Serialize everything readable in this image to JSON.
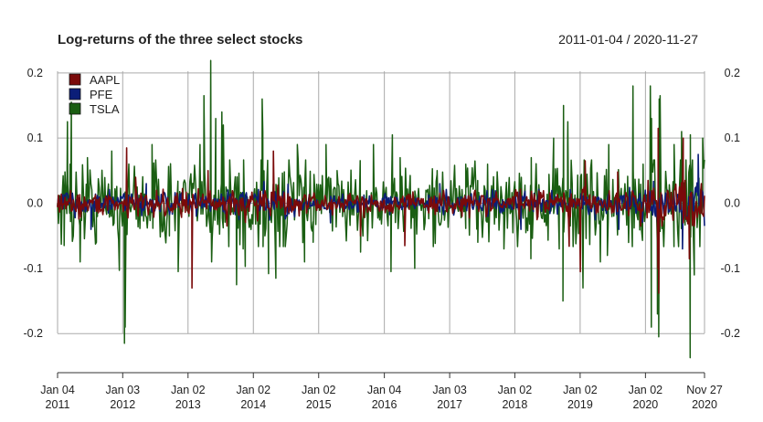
{
  "chart_data": {
    "type": "line",
    "title": "Log-returns of the three select stocks",
    "date_range_label": "2011-01-04 / 2020-11-27",
    "x_start": "2011-01-04",
    "x_end": "2020-11-27",
    "ylim": [
      -0.26,
      0.225
    ],
    "y_ticks": [
      {
        "value": 0.2,
        "label": "0.2"
      },
      {
        "value": 0.1,
        "label": "0.1"
      },
      {
        "value": 0.0,
        "label": "0.0"
      },
      {
        "value": -0.1,
        "label": "-0.1"
      },
      {
        "value": -0.2,
        "label": "-0.2"
      }
    ],
    "x_ticks": [
      {
        "date": "2011-01-04",
        "line1": "Jan 04",
        "line2": "2011"
      },
      {
        "date": "2012-01-03",
        "line1": "Jan 03",
        "line2": "2012"
      },
      {
        "date": "2013-01-02",
        "line1": "Jan 02",
        "line2": "2013"
      },
      {
        "date": "2014-01-02",
        "line1": "Jan 02",
        "line2": "2014"
      },
      {
        "date": "2015-01-02",
        "line1": "Jan 02",
        "line2": "2015"
      },
      {
        "date": "2016-01-04",
        "line1": "Jan 04",
        "line2": "2016"
      },
      {
        "date": "2017-01-03",
        "line1": "Jan 03",
        "line2": "2017"
      },
      {
        "date": "2018-01-02",
        "line1": "Jan 02",
        "line2": "2018"
      },
      {
        "date": "2019-01-02",
        "line1": "Jan 02",
        "line2": "2019"
      },
      {
        "date": "2020-01-02",
        "line1": "Jan 02",
        "line2": "2020"
      },
      {
        "date": "2020-11-27",
        "line1": "Nov 27",
        "line2": "2020"
      }
    ],
    "grid": true,
    "legend": {
      "placement": "top-left"
    },
    "series": [
      {
        "name": "TSLA",
        "color": "#1a5e12",
        "values": [
          [
            "2011-01-04",
            0.0
          ],
          [
            "2011-02-10",
            -0.065
          ],
          [
            "2011-03-15",
            0.06
          ],
          [
            "2011-05-10",
            -0.09
          ],
          [
            "2011-06-20",
            0.07
          ],
          [
            "2011-08-09",
            -0.06
          ],
          [
            "2011-11-03",
            0.08
          ],
          [
            "2011-02-28",
            0.125
          ],
          [
            "2011-03-22",
            0.155
          ],
          [
            "2011-12-15",
            -0.103
          ],
          [
            "2012-01-13",
            -0.215
          ],
          [
            "2012-01-17",
            -0.19
          ],
          [
            "2012-06-15",
            0.09
          ],
          [
            "2012-09-20",
            -0.05
          ],
          [
            "2012-11-08",
            -0.105
          ],
          [
            "2013-03-10",
            0.09
          ],
          [
            "2013-04-01",
            0.165
          ],
          [
            "2013-05-09",
            0.219
          ],
          [
            "2013-05-14",
            -0.09
          ],
          [
            "2013-06-06",
            0.13
          ],
          [
            "2013-07-10",
            0.14
          ],
          [
            "2013-07-18",
            0.12
          ],
          [
            "2013-09-30",
            -0.125
          ],
          [
            "2013-11-06",
            -0.07
          ],
          [
            "2013-11-18",
            -0.097
          ],
          [
            "2014-02-20",
            0.16
          ],
          [
            "2014-02-24",
            0.11
          ],
          [
            "2014-03-28",
            -0.108
          ],
          [
            "2014-05-08",
            -0.115
          ],
          [
            "2014-09-05",
            0.09
          ],
          [
            "2014-10-15",
            -0.09
          ],
          [
            "2014-12-02",
            -0.06
          ],
          [
            "2015-02-12",
            0.09
          ],
          [
            "2015-04-15",
            0.05
          ],
          [
            "2015-08-24",
            -0.075
          ],
          [
            "2015-11-04",
            0.09
          ],
          [
            "2016-02-10",
            -0.105
          ],
          [
            "2016-02-18",
            0.105
          ],
          [
            "2016-04-01",
            0.07
          ],
          [
            "2016-06-22",
            -0.1
          ],
          [
            "2016-10-25",
            0.05
          ],
          [
            "2017-04-03",
            0.06
          ],
          [
            "2017-06-09",
            -0.06
          ],
          [
            "2017-08-03",
            0.06
          ],
          [
            "2017-11-02",
            -0.07
          ],
          [
            "2018-04-02",
            -0.085
          ],
          [
            "2018-04-04",
            0.07
          ],
          [
            "2018-08-07",
            0.1
          ],
          [
            "2018-09-07",
            -0.07
          ],
          [
            "2018-09-28",
            -0.15
          ],
          [
            "2018-10-01",
            0.15
          ],
          [
            "2018-10-24",
            0.09
          ],
          [
            "2018-10-25",
            0.125
          ],
          [
            "2019-01-18",
            -0.13
          ],
          [
            "2019-04-25",
            -0.09
          ],
          [
            "2019-06-03",
            -0.08
          ],
          [
            "2019-06-11",
            0.09
          ],
          [
            "2019-10-24",
            0.18
          ],
          [
            "2019-12-20",
            0.06
          ],
          [
            "2020-01-29",
            0.18
          ],
          [
            "2020-02-04",
            -0.19
          ],
          [
            "2020-02-05",
            0.13
          ],
          [
            "2020-03-09",
            -0.17
          ],
          [
            "2020-03-16",
            -0.205
          ],
          [
            "2020-03-19",
            0.16
          ],
          [
            "2020-03-24",
            0.165
          ],
          [
            "2020-06-10",
            0.09
          ],
          [
            "2020-07-22",
            0.11
          ],
          [
            "2020-09-08",
            -0.237
          ],
          [
            "2020-09-09",
            0.105
          ],
          [
            "2020-10-01",
            -0.11
          ],
          [
            "2020-11-17",
            0.1
          ]
        ]
      },
      {
        "name": "PFE",
        "color": "#0b1e78",
        "values": [
          [
            "2011-07-10",
            -0.04
          ],
          [
            "2012-05-14",
            0.03
          ],
          [
            "2015-03-09",
            -0.03
          ],
          [
            "2016-11-09",
            0.03
          ],
          [
            "2018-02-05",
            -0.04
          ],
          [
            "2019-08-06",
            -0.04
          ],
          [
            "2020-03-16",
            -0.075
          ],
          [
            "2020-07-27",
            -0.07
          ],
          [
            "2020-10-23",
            0.075
          ]
        ]
      },
      {
        "name": "AAPL",
        "color": "#7a0a0a",
        "values": [
          [
            "2012-01-25",
            0.085
          ],
          [
            "2012-03-15",
            0.04
          ],
          [
            "2013-01-24",
            -0.13
          ],
          [
            "2013-04-24",
            0.05
          ],
          [
            "2014-04-24",
            0.08
          ],
          [
            "2015-08-24",
            -0.05
          ],
          [
            "2016-04-27",
            -0.065
          ],
          [
            "2018-11-02",
            -0.066
          ],
          [
            "2019-01-03",
            -0.105
          ],
          [
            "2019-01-30",
            0.065
          ],
          [
            "2019-07-31",
            0.048
          ],
          [
            "2020-03-12",
            -0.1
          ],
          [
            "2020-03-13",
            0.115
          ],
          [
            "2020-03-16",
            -0.138
          ],
          [
            "2020-07-31",
            0.1
          ],
          [
            "2020-09-03",
            -0.085
          ],
          [
            "2020-11-09",
            0.03
          ]
        ]
      }
    ]
  }
}
